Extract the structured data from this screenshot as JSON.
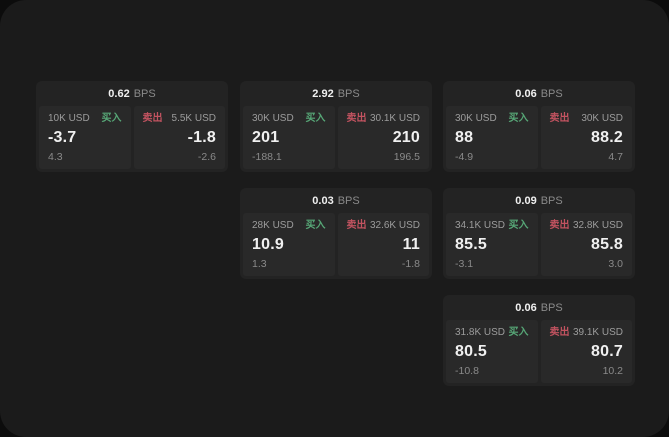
{
  "labels": {
    "bps_unit": "BPS",
    "buy": "买入",
    "sell": "卖出"
  },
  "colors": {
    "backdrop": "#0c0c0c",
    "page_bg": "#1b1b1b",
    "card_bg": "#232323",
    "panel_bg": "#292929",
    "buy_green": "#57a777",
    "sell_red": "#c25360",
    "text_main": "#f0f0f0",
    "text_dim": "#8a8a8a"
  },
  "cards": [
    {
      "bps": "0.62",
      "buy": {
        "amount": "10K USD",
        "value": "-3.7",
        "delta": "4.3"
      },
      "sell": {
        "amount": "5.5K USD",
        "value": "-1.8",
        "delta": "-2.6"
      }
    },
    {
      "bps": "2.92",
      "buy": {
        "amount": "30K USD",
        "value": "201",
        "delta": "-188.1"
      },
      "sell": {
        "amount": "30.1K USD",
        "value": "210",
        "delta": "196.5"
      }
    },
    {
      "bps": "0.06",
      "buy": {
        "amount": "30K USD",
        "value": "88",
        "delta": "-4.9"
      },
      "sell": {
        "amount": "30K USD",
        "value": "88.2",
        "delta": "4.7"
      }
    },
    {
      "bps": "0.03",
      "buy": {
        "amount": "28K USD",
        "value": "10.9",
        "delta": "1.3"
      },
      "sell": {
        "amount": "32.6K USD",
        "value": "11",
        "delta": "-1.8"
      }
    },
    {
      "bps": "0.09",
      "buy": {
        "amount": "34.1K USD",
        "value": "85.5",
        "delta": "-3.1"
      },
      "sell": {
        "amount": "32.8K USD",
        "value": "85.8",
        "delta": "3.0"
      }
    },
    {
      "bps": "0.06",
      "buy": {
        "amount": "31.8K USD",
        "value": "80.5",
        "delta": "-10.8"
      },
      "sell": {
        "amount": "39.1K USD",
        "value": "80.7",
        "delta": "10.2"
      }
    }
  ]
}
